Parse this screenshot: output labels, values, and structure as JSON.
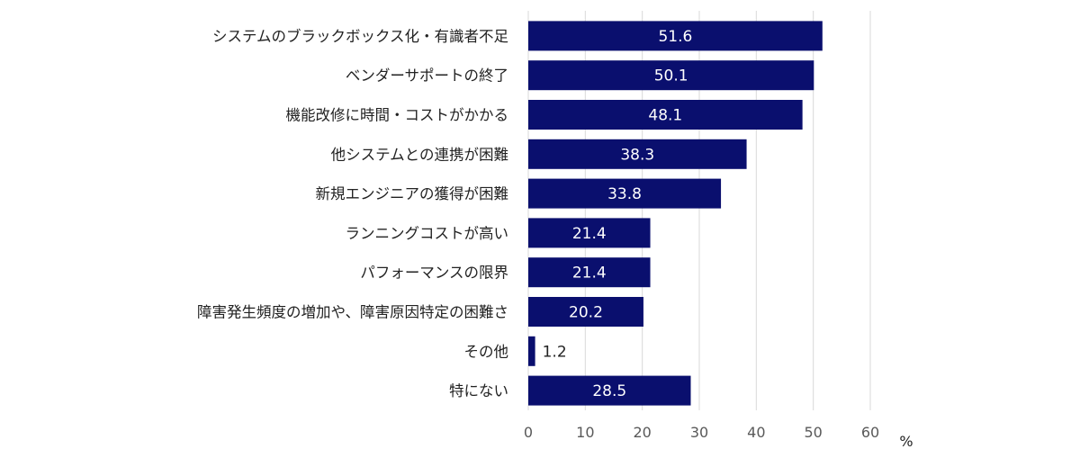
{
  "chart_data": {
    "type": "bar",
    "orientation": "horizontal",
    "categories": [
      "システムのブラックボックス化・有識者不足",
      "ベンダーサポートの終了",
      "機能改修に時間・コストがかかる",
      "他システムとの連携が困難",
      "新規エンジニアの獲得が困難",
      "ランニングコストが高い",
      "パフォーマンスの限界",
      "障害発生頻度の増加や、障害原因特定の困難さ",
      "その他",
      "特にない"
    ],
    "values": [
      51.6,
      50.1,
      48.1,
      38.3,
      33.8,
      21.4,
      21.4,
      20.2,
      1.2,
      28.5
    ],
    "value_labels": [
      "51.6",
      "50.1",
      "48.1",
      "38.3",
      "33.8",
      "21.4",
      "21.4",
      "20.2",
      "1.2",
      "28.5"
    ],
    "x_ticks": [
      "0",
      "10",
      "20",
      "30",
      "40",
      "50",
      "60"
    ],
    "xlim": [
      0,
      60
    ],
    "unit": "%",
    "grid": true,
    "legend": "none",
    "bar_color": "#0a0f6e"
  }
}
